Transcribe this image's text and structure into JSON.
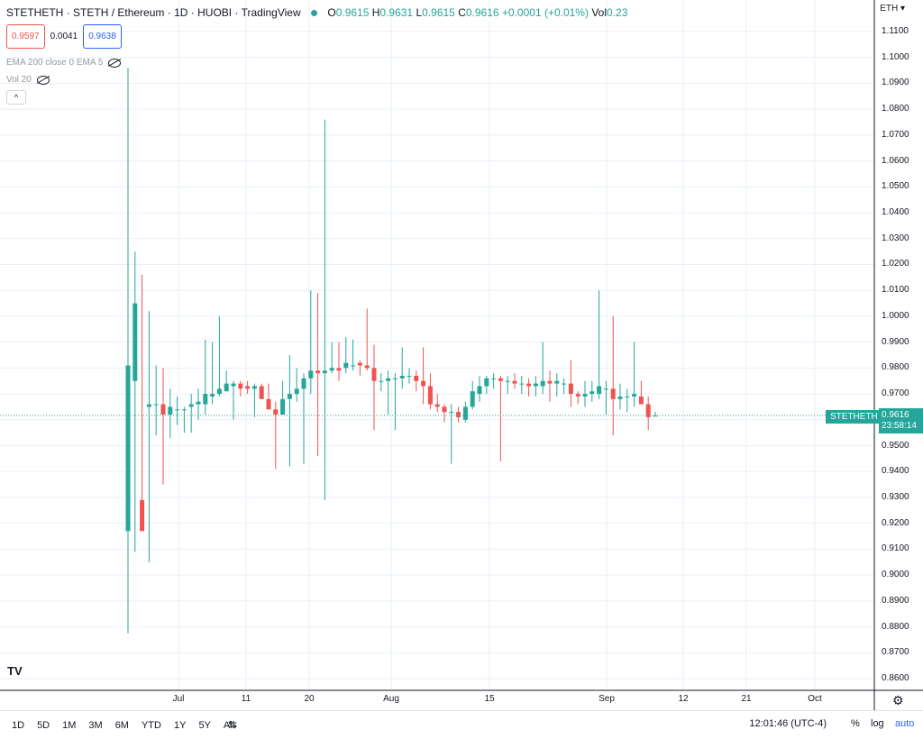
{
  "header": {
    "symbol": "STETHETH",
    "name": "STETH / Ethereum",
    "interval": "1D",
    "exchange": "HUOBI",
    "platform": "TradingView",
    "open_label": "O",
    "open": "0.9615",
    "high_label": "H",
    "high": "0.9631",
    "low_label": "L",
    "low": "0.9615",
    "close_label": "C",
    "close": "0.9616",
    "change": "+0.0001 (+0.01%)",
    "vol_label": "Vol",
    "vol": "0.23"
  },
  "quote": {
    "sell": "0.9597",
    "spread": "0.0041",
    "buy": "0.9638"
  },
  "indicators": [
    {
      "label": "EMA 200 close 0 EMA 5",
      "icon": "eye-off-icon"
    },
    {
      "label": "Vol 20",
      "icon": "eye-off-icon"
    }
  ],
  "price_axis": {
    "currency": "ETH",
    "ticks": [
      "1.1100",
      "1.1000",
      "1.0900",
      "1.0800",
      "1.0700",
      "1.0600",
      "1.0500",
      "1.0400",
      "1.0300",
      "1.0200",
      "1.0100",
      "1.0000",
      "0.9900",
      "0.9800",
      "0.9700",
      "0.9600",
      "0.9500",
      "0.9400",
      "0.9300",
      "0.9200",
      "0.9100",
      "0.9000",
      "0.8900",
      "0.8800",
      "0.8700",
      "0.8600"
    ]
  },
  "last_price": {
    "symbol_tag": "STETHETH",
    "value": "0.9616",
    "countdown": "23:58:14"
  },
  "time_axis": {
    "labels": [
      "Jul",
      "11",
      "20",
      "Aug",
      "15",
      "Sep",
      "12",
      "21",
      "Oct"
    ]
  },
  "bottom_bar": {
    "ranges": [
      "1D",
      "5D",
      "1M",
      "3M",
      "6M",
      "YTD",
      "1Y",
      "5Y",
      "All"
    ],
    "clock": "12:01:46 (UTC-4)",
    "percent": "%",
    "log": "log",
    "auto": "auto"
  },
  "colors": {
    "up": "#26a69a",
    "down": "#ef5350",
    "grid": "#e8f1f8",
    "accent": "#2962ff"
  },
  "chart_data": {
    "type": "candlestick",
    "y_range": [
      0.855,
      1.116
    ],
    "x_labels": [
      "Jul",
      "11",
      "20",
      "Aug",
      "15",
      "Sep",
      "12",
      "21",
      "Oct"
    ],
    "candles": [
      {
        "o": 0.917,
        "h": 1.096,
        "l": 0.8775,
        "c": 0.981
      },
      {
        "o": 0.975,
        "h": 1.025,
        "l": 0.909,
        "c": 1.005
      },
      {
        "o": 0.929,
        "h": 1.016,
        "l": 0.917,
        "c": 0.917
      },
      {
        "o": 0.965,
        "h": 1.002,
        "l": 0.905,
        "c": 0.966
      },
      {
        "o": 0.966,
        "h": 0.981,
        "l": 0.954,
        "c": 0.966
      },
      {
        "o": 0.966,
        "h": 0.98,
        "l": 0.935,
        "c": 0.962
      },
      {
        "o": 0.962,
        "h": 0.972,
        "l": 0.953,
        "c": 0.965
      },
      {
        "o": 0.964,
        "h": 0.969,
        "l": 0.958,
        "c": 0.964
      },
      {
        "o": 0.964,
        "h": 0.965,
        "l": 0.955,
        "c": 0.964
      },
      {
        "o": 0.965,
        "h": 0.97,
        "l": 0.955,
        "c": 0.966
      },
      {
        "o": 0.966,
        "h": 0.972,
        "l": 0.96,
        "c": 0.967
      },
      {
        "o": 0.966,
        "h": 0.991,
        "l": 0.962,
        "c": 0.97
      },
      {
        "o": 0.969,
        "h": 0.99,
        "l": 0.966,
        "c": 0.97
      },
      {
        "o": 0.97,
        "h": 1.0,
        "l": 0.969,
        "c": 0.972
      },
      {
        "o": 0.971,
        "h": 0.979,
        "l": 0.971,
        "c": 0.974
      },
      {
        "o": 0.973,
        "h": 0.975,
        "l": 0.96,
        "c": 0.974
      },
      {
        "o": 0.974,
        "h": 0.975,
        "l": 0.969,
        "c": 0.972
      },
      {
        "o": 0.973,
        "h": 0.975,
        "l": 0.97,
        "c": 0.972
      },
      {
        "o": 0.972,
        "h": 0.974,
        "l": 0.961,
        "c": 0.973
      },
      {
        "o": 0.973,
        "h": 0.974,
        "l": 0.97,
        "c": 0.968
      },
      {
        "o": 0.968,
        "h": 0.974,
        "l": 0.966,
        "c": 0.964
      },
      {
        "o": 0.964,
        "h": 0.967,
        "l": 0.941,
        "c": 0.962
      },
      {
        "o": 0.962,
        "h": 0.975,
        "l": 0.962,
        "c": 0.968
      },
      {
        "o": 0.968,
        "h": 0.985,
        "l": 0.942,
        "c": 0.97
      },
      {
        "o": 0.97,
        "h": 0.98,
        "l": 0.967,
        "c": 0.972
      },
      {
        "o": 0.972,
        "h": 0.978,
        "l": 0.943,
        "c": 0.976
      },
      {
        "o": 0.976,
        "h": 1.01,
        "l": 0.97,
        "c": 0.979
      },
      {
        "o": 0.979,
        "h": 1.009,
        "l": 0.946,
        "c": 0.978
      },
      {
        "o": 0.978,
        "h": 1.076,
        "l": 0.929,
        "c": 0.979
      },
      {
        "o": 0.979,
        "h": 0.99,
        "l": 0.978,
        "c": 0.98
      },
      {
        "o": 0.98,
        "h": 0.99,
        "l": 0.975,
        "c": 0.979
      },
      {
        "o": 0.98,
        "h": 0.992,
        "l": 0.978,
        "c": 0.982
      },
      {
        "o": 0.981,
        "h": 0.991,
        "l": 0.979,
        "c": 0.981
      },
      {
        "o": 0.982,
        "h": 0.983,
        "l": 0.977,
        "c": 0.981
      },
      {
        "o": 0.981,
        "h": 1.003,
        "l": 0.979,
        "c": 0.98
      },
      {
        "o": 0.98,
        "h": 0.989,
        "l": 0.956,
        "c": 0.975
      },
      {
        "o": 0.975,
        "h": 0.978,
        "l": 0.971,
        "c": 0.975
      },
      {
        "o": 0.975,
        "h": 0.979,
        "l": 0.962,
        "c": 0.976
      },
      {
        "o": 0.976,
        "h": 0.978,
        "l": 0.956,
        "c": 0.976
      },
      {
        "o": 0.976,
        "h": 0.988,
        "l": 0.972,
        "c": 0.977
      },
      {
        "o": 0.977,
        "h": 0.98,
        "l": 0.974,
        "c": 0.977
      },
      {
        "o": 0.977,
        "h": 0.979,
        "l": 0.971,
        "c": 0.975
      },
      {
        "o": 0.975,
        "h": 0.988,
        "l": 0.966,
        "c": 0.973
      },
      {
        "o": 0.973,
        "h": 0.978,
        "l": 0.964,
        "c": 0.966
      },
      {
        "o": 0.966,
        "h": 0.97,
        "l": 0.963,
        "c": 0.965
      },
      {
        "o": 0.965,
        "h": 0.966,
        "l": 0.959,
        "c": 0.963
      },
      {
        "o": 0.963,
        "h": 0.966,
        "l": 0.943,
        "c": 0.963
      },
      {
        "o": 0.963,
        "h": 0.965,
        "l": 0.959,
        "c": 0.961
      },
      {
        "o": 0.96,
        "h": 0.967,
        "l": 0.959,
        "c": 0.965
      },
      {
        "o": 0.965,
        "h": 0.975,
        "l": 0.964,
        "c": 0.971
      },
      {
        "o": 0.97,
        "h": 0.977,
        "l": 0.967,
        "c": 0.973
      },
      {
        "o": 0.973,
        "h": 0.977,
        "l": 0.97,
        "c": 0.976
      },
      {
        "o": 0.976,
        "h": 0.978,
        "l": 0.972,
        "c": 0.976
      },
      {
        "o": 0.976,
        "h": 0.977,
        "l": 0.944,
        "c": 0.975
      },
      {
        "o": 0.975,
        "h": 0.977,
        "l": 0.97,
        "c": 0.975
      },
      {
        "o": 0.975,
        "h": 0.978,
        "l": 0.972,
        "c": 0.974
      },
      {
        "o": 0.974,
        "h": 0.977,
        "l": 0.97,
        "c": 0.974
      },
      {
        "o": 0.974,
        "h": 0.976,
        "l": 0.969,
        "c": 0.973
      },
      {
        "o": 0.973,
        "h": 0.977,
        "l": 0.969,
        "c": 0.974
      },
      {
        "o": 0.973,
        "h": 0.99,
        "l": 0.97,
        "c": 0.975
      },
      {
        "o": 0.975,
        "h": 0.979,
        "l": 0.967,
        "c": 0.974
      },
      {
        "o": 0.974,
        "h": 0.978,
        "l": 0.969,
        "c": 0.975
      },
      {
        "o": 0.974,
        "h": 0.976,
        "l": 0.97,
        "c": 0.974
      },
      {
        "o": 0.974,
        "h": 0.983,
        "l": 0.965,
        "c": 0.97
      },
      {
        "o": 0.97,
        "h": 0.971,
        "l": 0.966,
        "c": 0.969
      },
      {
        "o": 0.969,
        "h": 0.975,
        "l": 0.965,
        "c": 0.97
      },
      {
        "o": 0.97,
        "h": 0.975,
        "l": 0.967,
        "c": 0.971
      },
      {
        "o": 0.97,
        "h": 1.01,
        "l": 0.968,
        "c": 0.973
      },
      {
        "o": 0.972,
        "h": 0.975,
        "l": 0.962,
        "c": 0.972
      },
      {
        "o": 0.972,
        "h": 1.0,
        "l": 0.954,
        "c": 0.968
      },
      {
        "o": 0.968,
        "h": 0.974,
        "l": 0.964,
        "c": 0.969
      },
      {
        "o": 0.969,
        "h": 0.972,
        "l": 0.963,
        "c": 0.969
      },
      {
        "o": 0.969,
        "h": 0.99,
        "l": 0.965,
        "c": 0.97
      },
      {
        "o": 0.969,
        "h": 0.975,
        "l": 0.966,
        "c": 0.966
      },
      {
        "o": 0.966,
        "h": 0.969,
        "l": 0.956,
        "c": 0.961
      },
      {
        "o": 0.9615,
        "h": 0.9631,
        "l": 0.9615,
        "c": 0.9616
      }
    ]
  }
}
